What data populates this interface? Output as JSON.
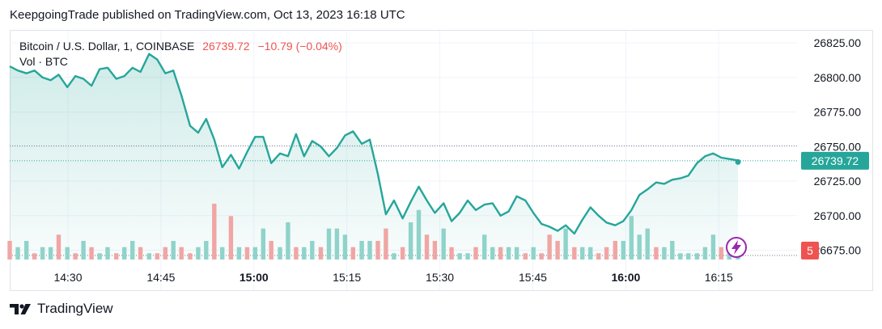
{
  "header": {
    "published_text": "KeepgoingTrade published on TradingView.com, Oct 13, 2023 16:18 UTC"
  },
  "legend": {
    "symbol": "Bitcoin / U.S. Dollar, 1, COINBASE",
    "last": "26739.72",
    "change": "−10.79 (−0.04%)",
    "volume_label": "Vol · BTC"
  },
  "price_label": "26739.72",
  "volume_badge": "5",
  "footer": {
    "brand": "TradingView"
  },
  "icons": {
    "footer_logo": "tradingview-logo",
    "flash": "lightning-icon"
  },
  "colors": {
    "line": "#26a69a",
    "fill": "#e6f4f1",
    "up_volume": "#8fd3ca",
    "down_volume": "#f0a6a4",
    "price_badge": "#26a69a",
    "volume_badge": "#ef5350",
    "flash": "#9c27b0"
  },
  "chart_data": {
    "type": "area",
    "title": "Bitcoin / U.S. Dollar, 1, COINBASE",
    "x_ticks": [
      "14:30",
      "14:45",
      "15:00",
      "15:15",
      "15:30",
      "15:45",
      "16:00",
      "16:15"
    ],
    "x_ticks_minutes": [
      870,
      885,
      900,
      915,
      930,
      945,
      960,
      975
    ],
    "y_ticks": [
      26675.0,
      26700.0,
      26725.0,
      26750.0,
      26775.0,
      26800.0,
      26825.0
    ],
    "y_tick_labels": [
      "26675.00",
      "26700.00",
      "26725.00",
      "26750.00",
      "26775.00",
      "26800.00",
      "26825.00"
    ],
    "ylim": [
      26667.7,
      26833.8
    ],
    "xlim_minutes": [
      860.6,
      987.8
    ],
    "grid": true,
    "last_price": 26739.72,
    "dotted_line_value": 26750.5,
    "series": [
      {
        "name": "Close",
        "x_minutes": [
          860.6,
          861.9,
          863.3,
          864.6,
          865.9,
          867.2,
          868.5,
          869.9,
          871.2,
          872.5,
          873.8,
          875.1,
          876.4,
          877.8,
          879.1,
          880.4,
          881.7,
          883.1,
          884.4,
          885.7,
          887.0,
          888.3,
          889.7,
          891.0,
          892.3,
          893.6,
          894.9,
          896.3,
          897.6,
          898.9,
          900.2,
          901.5,
          902.8,
          904.2,
          905.5,
          906.8,
          908.1,
          909.4,
          910.8,
          912.1,
          913.4,
          914.7,
          916.0,
          917.4,
          918.7,
          920.0,
          921.3,
          922.6,
          924.0,
          925.3,
          926.6,
          927.9,
          929.2,
          930.6,
          931.9,
          933.2,
          934.5,
          935.8,
          937.2,
          938.5,
          939.8,
          941.1,
          942.4,
          943.8,
          945.1,
          946.4,
          947.7,
          949.0,
          950.3,
          951.7,
          953.0,
          954.3,
          955.6,
          956.9,
          958.3,
          959.6,
          960.9,
          962.2,
          963.5,
          964.9,
          966.2,
          967.5,
          968.8,
          970.1,
          971.5,
          972.8,
          974.1,
          975.4,
          976.7,
          978.1
        ],
        "values": [
          26808,
          26805,
          26803,
          26805,
          26800,
          26798,
          26802,
          26793,
          26801,
          26799,
          26794,
          26806,
          26807,
          26799,
          26801,
          26807,
          26804,
          26817,
          26813,
          26803,
          26805,
          26787,
          26765,
          26760,
          26770,
          26755,
          26735,
          26744,
          26734,
          26746,
          26757,
          26757,
          26738,
          26745,
          26743,
          26759,
          26743,
          26754,
          26750,
          26743,
          26749,
          26758,
          26761,
          26752,
          26755,
          26730,
          26701,
          26711,
          26698,
          26710,
          26721,
          26711,
          26702,
          26709,
          26696,
          26702,
          26711,
          26704,
          26708,
          26709,
          26700,
          26703,
          26714,
          26711,
          26702,
          26694,
          26692,
          26689,
          26693,
          26687,
          26697,
          26706,
          26700,
          26695,
          26693,
          26696,
          26704,
          26715,
          26719,
          26724,
          26723,
          26726,
          26727,
          26729,
          26738,
          26743,
          26745,
          26742,
          26741,
          26740
        ]
      },
      {
        "name": "Volume",
        "values": [
          3,
          2,
          3,
          1,
          2,
          2,
          4,
          2,
          1,
          3,
          2,
          1,
          2,
          1,
          2,
          3,
          2,
          1,
          1,
          2,
          3,
          2,
          1,
          2,
          3,
          9,
          2,
          7,
          2,
          2,
          2,
          5,
          3,
          2,
          6,
          2,
          2,
          3,
          2,
          5,
          5,
          4,
          2,
          3,
          3,
          3,
          5,
          1,
          2,
          6,
          8,
          4,
          3,
          5,
          2,
          1,
          1,
          2,
          4,
          2,
          2,
          2,
          2,
          1,
          2,
          1,
          4,
          3,
          5,
          2,
          2,
          2,
          1,
          2,
          3,
          3,
          7,
          4,
          5,
          2,
          2,
          3,
          1,
          1,
          1,
          2,
          4,
          2,
          1,
          2
        ],
        "directions": [
          "d",
          "u",
          "u",
          "d",
          "u",
          "u",
          "d",
          "u",
          "d",
          "u",
          "d",
          "u",
          "u",
          "d",
          "u",
          "u",
          "d",
          "u",
          "d",
          "d",
          "u",
          "d",
          "d",
          "u",
          "u",
          "d",
          "u",
          "d",
          "u",
          "d",
          "u",
          "u",
          "d",
          "u",
          "u",
          "d",
          "u",
          "u",
          "d",
          "u",
          "u",
          "u",
          "d",
          "u",
          "u",
          "d",
          "d",
          "u",
          "d",
          "u",
          "u",
          "d",
          "d",
          "u",
          "d",
          "u",
          "u",
          "d",
          "u",
          "u",
          "d",
          "u",
          "u",
          "d",
          "u",
          "d",
          "d",
          "d",
          "u",
          "d",
          "u",
          "u",
          "d",
          "d",
          "d",
          "u",
          "u",
          "u",
          "u",
          "d",
          "u",
          "u",
          "u",
          "u",
          "u",
          "u",
          "u",
          "d",
          "u",
          "u"
        ]
      }
    ]
  }
}
